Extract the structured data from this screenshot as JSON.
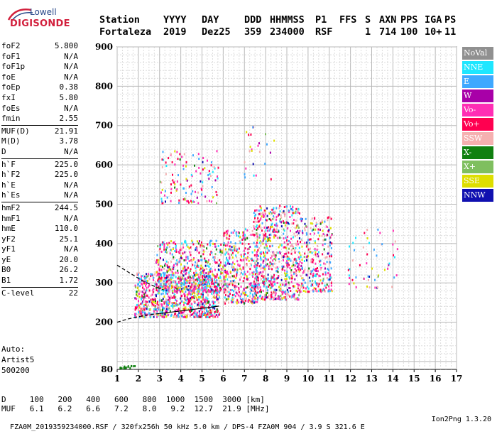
{
  "logo": {
    "brand": "Lowell",
    "name": "DIGISONDE"
  },
  "header": {
    "labels": [
      "Station",
      "YYYY",
      "DAY",
      "DDD",
      "HHMMSS",
      "P1",
      "FFS",
      "S",
      "AXN",
      "PPS",
      "IGA",
      "PS"
    ],
    "values": [
      "Fortaleza",
      "2019",
      "Dez25",
      "359",
      "234000",
      "RSF",
      "",
      "1",
      "714",
      "100",
      "10+",
      "11"
    ]
  },
  "params": [
    [
      {
        "k": "foF2",
        "v": "5.800"
      },
      {
        "k": "foF1",
        "v": "N/A"
      },
      {
        "k": "foF1p",
        "v": "N/A"
      },
      {
        "k": "foE",
        "v": "N/A"
      },
      {
        "k": "foEp",
        "v": "0.38"
      },
      {
        "k": "fxI",
        "v": "5.80"
      },
      {
        "k": "foEs",
        "v": "N/A"
      },
      {
        "k": "fmin",
        "v": "2.55"
      }
    ],
    [
      {
        "k": "MUF(D)",
        "v": "21.91"
      },
      {
        "k": "M(D)",
        "v": "3.78"
      },
      {
        "k": "D",
        "v": "N/A"
      }
    ],
    [
      {
        "k": "h`F",
        "v": "225.0"
      },
      {
        "k": "h`F2",
        "v": "225.0"
      },
      {
        "k": "h`E",
        "v": "N/A"
      },
      {
        "k": "h`Es",
        "v": "N/A"
      }
    ],
    [
      {
        "k": "hmF2",
        "v": "244.5"
      },
      {
        "k": "hmF1",
        "v": "N/A"
      },
      {
        "k": "hmE",
        "v": "110.0"
      },
      {
        "k": "yF2",
        "v": "25.1"
      },
      {
        "k": "yF1",
        "v": "N/A"
      },
      {
        "k": "yE",
        "v": "20.0"
      },
      {
        "k": "B0",
        "v": "26.2"
      },
      {
        "k": "B1",
        "v": "1.72"
      }
    ],
    [
      {
        "k": "C-level",
        "v": "22"
      }
    ]
  ],
  "auto": {
    "line1": "Auto:",
    "line2": "Artist5",
    "line3": "500200"
  },
  "distance_table": {
    "d_label": "D",
    "d_values": [
      "100",
      "200",
      "400",
      "600",
      "800",
      "1000",
      "1500",
      "3000"
    ],
    "d_unit": "[km]",
    "muf_label": "MUF",
    "muf_values": [
      "6.1",
      "6.2",
      "6.6",
      "7.2",
      "8.0",
      "9.2",
      "12.7",
      "21.9"
    ],
    "muf_unit": "[MHz]"
  },
  "footer": {
    "left": "FZA0M_2019359234000.RSF / 320fx256h 50 kHz 5.0 km / DPS-4 FZA0M 904 / 3.9 S 321.6 E",
    "right": "Ion2Png 1.3.20"
  },
  "legend": [
    {
      "label": "NoVal",
      "color": "#909090"
    },
    {
      "label": "NNE",
      "color": "#1ee6ff"
    },
    {
      "label": "E",
      "color": "#3fa8ff"
    },
    {
      "label": "W",
      "color": "#a800a8"
    },
    {
      "label": "Vo-",
      "color": "#ff2eb4"
    },
    {
      "label": "Vo+",
      "color": "#ff0050"
    },
    {
      "label": "SSW",
      "color": "#f5b0b0"
    },
    {
      "label": "X-",
      "color": "#108010"
    },
    {
      "label": "X+",
      "color": "#7fbf5f"
    },
    {
      "label": "SSE",
      "color": "#dede00"
    },
    {
      "label": "NNW",
      "color": "#1010b0"
    }
  ],
  "chart_data": {
    "type": "scatter",
    "title": "",
    "xlabel": "",
    "ylabel": "",
    "xlim": [
      1,
      17
    ],
    "ylim": [
      80,
      900
    ],
    "xticks": [
      1,
      2,
      3,
      4,
      5,
      6,
      7,
      8,
      9,
      10,
      11,
      12,
      13,
      14,
      15,
      16,
      17
    ],
    "yticks": [
      80,
      200,
      300,
      400,
      500,
      600,
      700,
      800,
      900
    ],
    "grid": true,
    "legend_position": "right",
    "clusters": [
      {
        "x": [
          1.8,
          5.8
        ],
        "y": [
          215,
          330
        ],
        "n": 900
      },
      {
        "x": [
          2.8,
          6.0
        ],
        "y": [
          280,
          410
        ],
        "n": 500
      },
      {
        "x": [
          3.0,
          5.8
        ],
        "y": [
          505,
          640
        ],
        "n": 120
      },
      {
        "x": [
          6.0,
          7.6
        ],
        "y": [
          250,
          440
        ],
        "n": 380
      },
      {
        "x": [
          7.4,
          9.6
        ],
        "y": [
          260,
          500
        ],
        "n": 650
      },
      {
        "x": [
          9.6,
          11.1
        ],
        "y": [
          280,
          470
        ],
        "n": 260
      },
      {
        "x": [
          11.8,
          14.2
        ],
        "y": [
          290,
          440
        ],
        "n": 55
      },
      {
        "x": [
          6.8,
          8.4
        ],
        "y": [
          560,
          700
        ],
        "n": 25
      },
      {
        "x": [
          1.0,
          1.9
        ],
        "y": [
          85,
          92
        ],
        "n": 14
      }
    ],
    "curves": [
      {
        "name": "",
        "style": "dashed",
        "x": [
          1.0,
          1.6,
          2.2,
          2.8,
          3.2
        ],
        "y": [
          345,
          325,
          305,
          290,
          282
        ]
      },
      {
        "name": "",
        "style": "dashed",
        "x": [
          1.0,
          1.5,
          2.0,
          2.5,
          3.0
        ],
        "y": [
          200,
          208,
          214,
          219,
          222
        ]
      },
      {
        "name": "",
        "style": "solid",
        "x": [
          3.0,
          3.6,
          4.2,
          4.8,
          5.4,
          5.8
        ],
        "y": [
          222,
          226,
          230,
          234,
          238,
          241
        ]
      }
    ]
  }
}
